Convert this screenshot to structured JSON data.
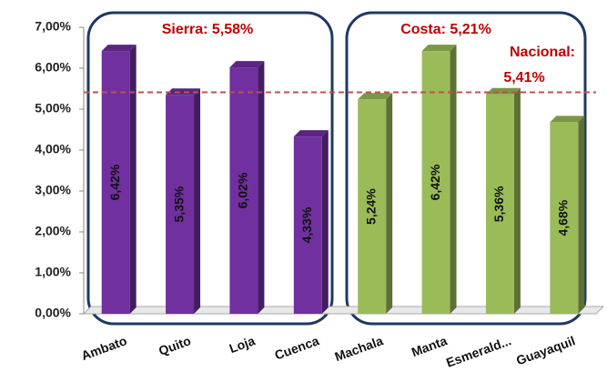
{
  "chart_data": {
    "type": "bar",
    "categories": [
      "Ambato",
      "Quito",
      "Loja",
      "Cuenca",
      "Machala",
      "Manta",
      "Esmerald...",
      "Guayaquil"
    ],
    "values": [
      6.42,
      5.35,
      6.02,
      4.33,
      5.24,
      6.42,
      5.36,
      4.68
    ],
    "value_labels": [
      "6,42%",
      "5,35%",
      "6,02%",
      "4,33%",
      "5,24%",
      "6,42%",
      "5,36%",
      "4,68%"
    ],
    "colors": [
      "#7030a0",
      "#7030a0",
      "#7030a0",
      "#7030a0",
      "#9bbb59",
      "#9bbb59",
      "#9bbb59",
      "#9bbb59"
    ],
    "ylim": [
      0,
      7
    ],
    "yticks": [
      {
        "value": 0,
        "label": "0,00%"
      },
      {
        "value": 1,
        "label": "1,00%"
      },
      {
        "value": 2,
        "label": "2,00%"
      },
      {
        "value": 3,
        "label": "3,00%"
      },
      {
        "value": 4,
        "label": "4,00%"
      },
      {
        "value": 5,
        "label": "5,00%"
      },
      {
        "value": 6,
        "label": "6,00%"
      },
      {
        "value": 7,
        "label": "7,00%"
      }
    ],
    "annotations": [
      "Sierra: 5,58%",
      "Costa: 5,21%"
    ],
    "reference_line": {
      "value": 5.41,
      "label_lines": [
        "Nacional:",
        "5,41%"
      ],
      "color": "#c0504d"
    },
    "grid": false
  }
}
